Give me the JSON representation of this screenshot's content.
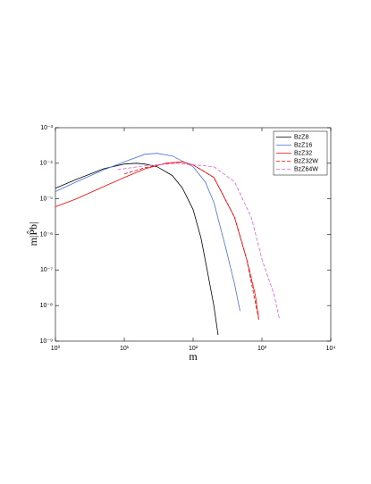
{
  "chart_data": {
    "type": "line",
    "xlabel": "m",
    "ylabel": "m|P̂b|",
    "xscale": "log",
    "yscale": "log",
    "xlim": [
      1,
      10000
    ],
    "ylim": [
      1e-09,
      0.001
    ],
    "xticks": [
      {
        "value": 1,
        "label": "10⁰"
      },
      {
        "value": 10,
        "label": "10¹"
      },
      {
        "value": 100,
        "label": "10²"
      },
      {
        "value": 1000,
        "label": "10³"
      },
      {
        "value": 10000,
        "label": "10⁴"
      }
    ],
    "yticks": [
      {
        "value": 1e-09,
        "label": "10⁻⁹"
      },
      {
        "value": 1e-08,
        "label": "10⁻⁸"
      },
      {
        "value": 1e-07,
        "label": "10⁻⁷"
      },
      {
        "value": 1e-06,
        "label": "10⁻⁶"
      },
      {
        "value": 1e-05,
        "label": "10⁻⁵"
      },
      {
        "value": 0.0001,
        "label": "10⁻⁴"
      },
      {
        "value": 0.001,
        "label": "10⁻³"
      }
    ],
    "legend": "upper right",
    "series": [
      {
        "name": "BzZ8",
        "color": "#000000",
        "dash": false,
        "x": [
          1,
          2,
          5,
          10,
          15,
          20,
          30,
          50,
          70,
          100,
          130,
          160,
          200,
          230
        ],
        "values": [
          2e-05,
          3.5e-05,
          7e-05,
          9.5e-05,
          0.0001,
          9.5e-05,
          8e-05,
          4.5e-05,
          2e-05,
          5e-06,
          8e-07,
          1e-07,
          1e-08,
          1.5e-09
        ]
      },
      {
        "name": "BzZ16",
        "color": "#4a6ee0",
        "dash": false,
        "x": [
          1,
          2,
          5,
          10,
          20,
          30,
          50,
          100,
          150,
          200,
          300,
          400,
          480
        ],
        "values": [
          1.6e-05,
          3e-05,
          6.5e-05,
          0.00011,
          0.00018,
          0.00019,
          0.00016,
          8e-05,
          3e-05,
          8e-06,
          4e-07,
          4e-08,
          7e-09
        ]
      },
      {
        "name": "BzZ32",
        "color": "#ff0000",
        "dash": false,
        "x": [
          1,
          2,
          5,
          10,
          20,
          40,
          70,
          100,
          200,
          400,
          600,
          800,
          900
        ],
        "values": [
          6e-06,
          1e-05,
          2.2e-05,
          4e-05,
          7e-05,
          0.0001,
          0.00011,
          9e-05,
          4e-05,
          3e-06,
          2e-07,
          2e-08,
          4e-09
        ]
      },
      {
        "name": "BzZ32W",
        "color": "#ff0000",
        "dash": true,
        "x": [
          10,
          20,
          50,
          100,
          200,
          400,
          600,
          900
        ],
        "values": [
          5e-05,
          7.5e-05,
          0.000105,
          9e-05,
          4e-05,
          3e-06,
          2e-07,
          4e-09
        ]
      },
      {
        "name": "BzZ64W",
        "color": "#e060e0",
        "dash": true,
        "x": [
          8,
          20,
          60,
          200,
          400,
          700,
          1000,
          1500,
          1800
        ],
        "values": [
          6.6e-05,
          8.5e-05,
          0.0001,
          8e-05,
          3e-05,
          3e-06,
          2e-07,
          2e-08,
          4e-09
        ]
      }
    ]
  }
}
